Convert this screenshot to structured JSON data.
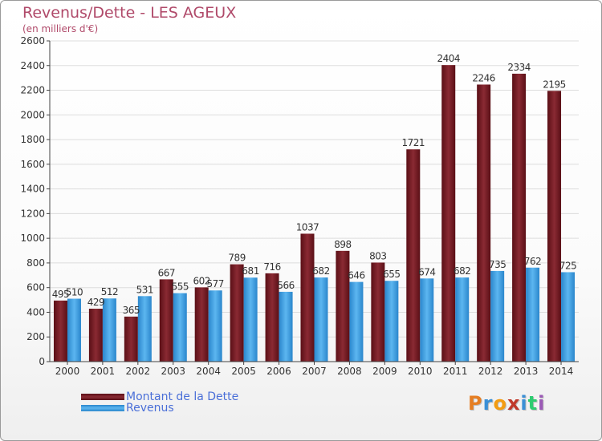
{
  "header": {
    "title": "Revenus/Dette - LES AGEUX",
    "subtitle": "(en milliers d'€)"
  },
  "logo": {
    "text": "Proxiti",
    "colors": [
      "#e67e22",
      "#3a8fd6",
      "#f39c12",
      "#c0392b",
      "#3a8fd6",
      "#2ecc71",
      "#9b59b6"
    ]
  },
  "colors": {
    "dette": "#7a1f27",
    "revenus": "#3ca0e6",
    "axis": "#444444",
    "grid": "#dddddd",
    "text": "#333333"
  },
  "chart_data": {
    "type": "bar",
    "title": "Revenus/Dette - LES AGEUX",
    "subtitle": "(en milliers d'€)",
    "xlabel": "",
    "ylabel": "",
    "ylim": [
      0,
      2600
    ],
    "yticks": [
      0,
      200,
      400,
      600,
      800,
      1000,
      1200,
      1400,
      1600,
      1800,
      2000,
      2200,
      2400,
      2600
    ],
    "grid": true,
    "legend_position": "bottom-left",
    "categories": [
      "2000",
      "2001",
      "2002",
      "2003",
      "2004",
      "2005",
      "2006",
      "2007",
      "2008",
      "2009",
      "2010",
      "2011",
      "2012",
      "2013",
      "2014"
    ],
    "series": [
      {
        "name": "Montant de la Dette",
        "values": [
          495,
          429,
          365,
          667,
          602,
          789,
          716,
          1037,
          898,
          803,
          1721,
          2404,
          2246,
          2334,
          2195
        ]
      },
      {
        "name": "Revenus",
        "values": [
          510,
          512,
          531,
          555,
          577,
          681,
          566,
          682,
          646,
          655,
          674,
          682,
          735,
          762,
          725
        ]
      }
    ]
  }
}
